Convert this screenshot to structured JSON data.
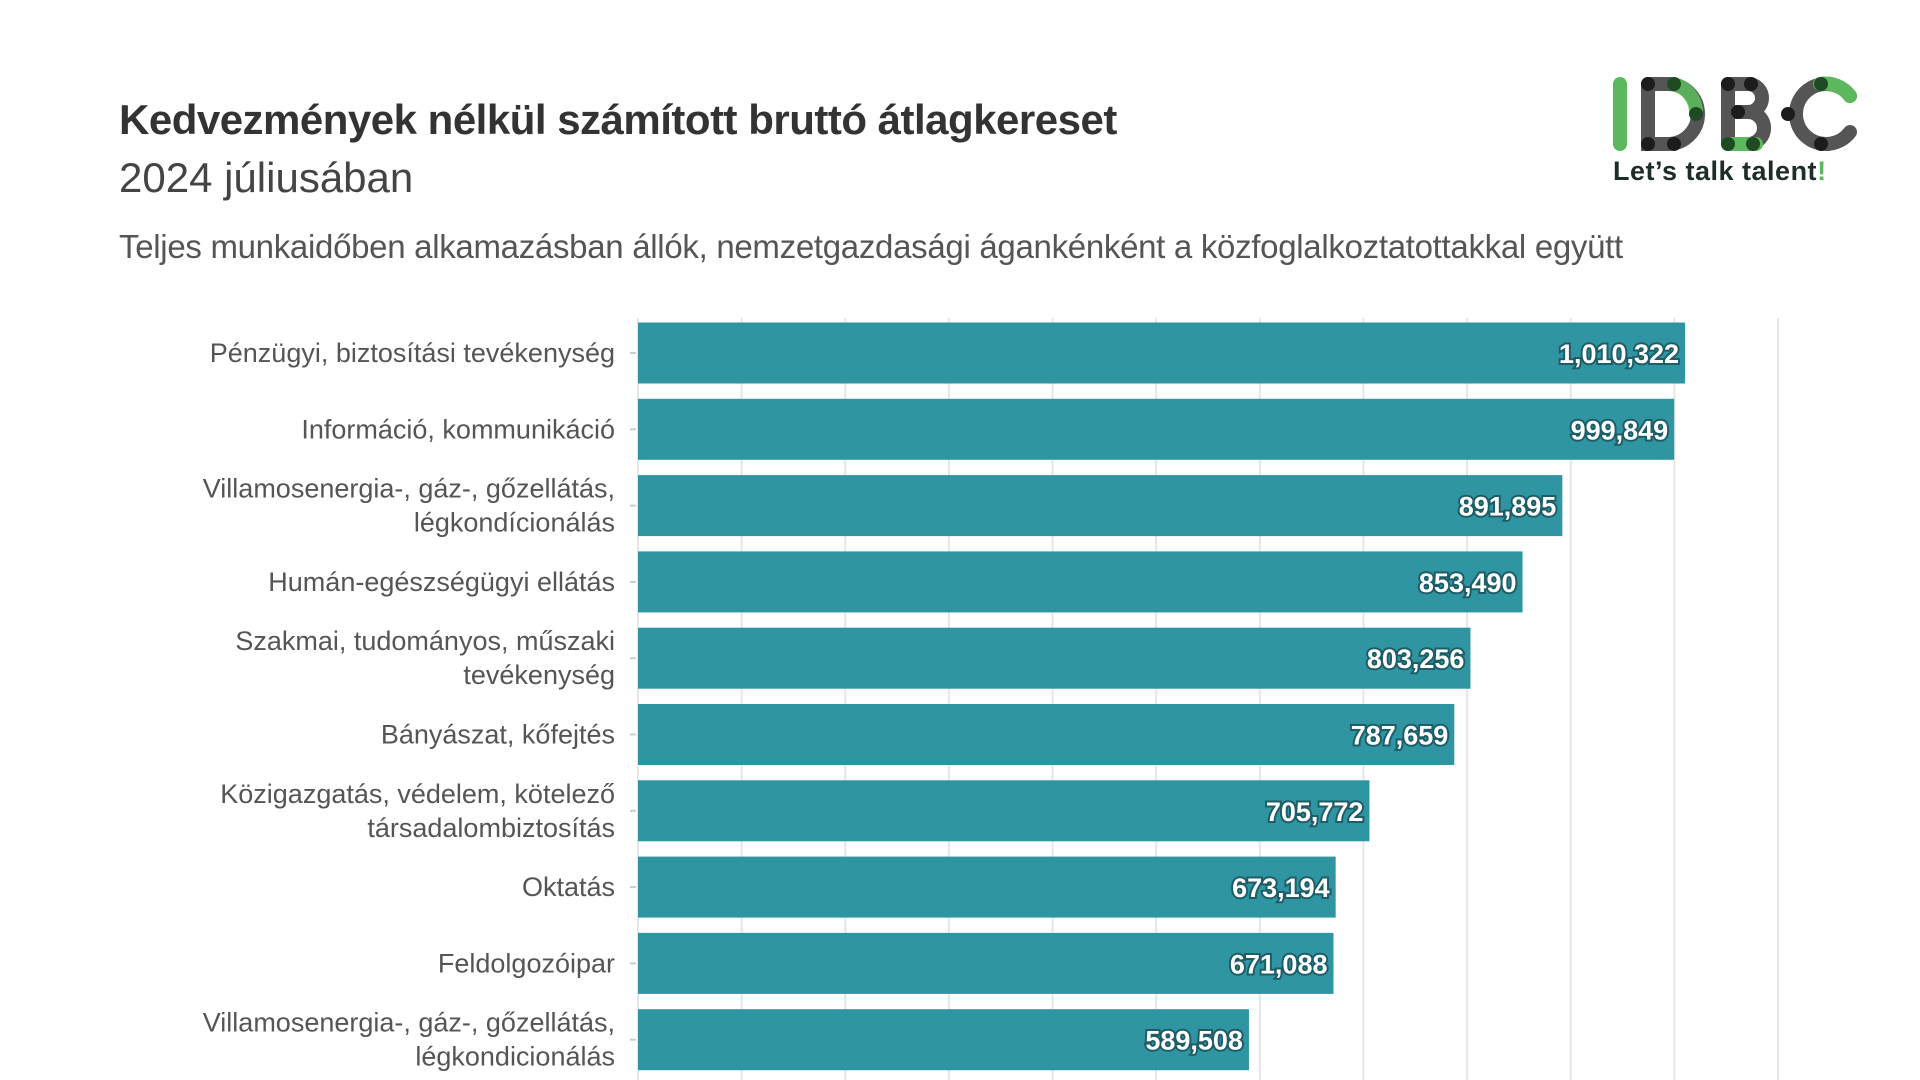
{
  "header": {
    "title": "Kedvezmények nélkül számított bruttó átlagkereset",
    "subtitle": "2024 júliusában",
    "description": "Teljes munkaidőben alkamazásban állók, nemzetgazdasági ágankénként a közfoglalkoztatottakkal együtt"
  },
  "logo": {
    "text": "IDBC",
    "tagline": "Let’s talk talent",
    "tagline_mark": "!"
  },
  "colors": {
    "bar": "#2f95a2",
    "grid": "#e6e6e6",
    "logo_green": "#5cb85c",
    "logo_dark": "#555555"
  },
  "chart_data": {
    "type": "bar",
    "orientation": "horizontal",
    "title": "Kedvezmények nélkül számított bruttó átlagkereset",
    "categories": [
      "Pénzügyi, biztosítási tevékenység",
      "Információ, kommunikáció",
      "Villamosenergia-, gáz-, gőzellátás,\nlégkondícionálás",
      "Humán-egészségügyi ellátás",
      "Szakmai, tudományos, műszaki\ntevékenység",
      "Bányászat, kőfejtés",
      "Közigazgatás, védelem, kötelező\ntársadalombiztosítás",
      "Oktatás",
      "Feldolgozóipar",
      "Villamosenergia-, gáz-, gőzellátás,\nlégkondicionálás"
    ],
    "values": [
      1010322,
      999849,
      891895,
      853490,
      803256,
      787659,
      705772,
      673194,
      671088,
      589508
    ],
    "value_labels": [
      "1,010,322",
      "999,849",
      "891,895",
      "853,490",
      "803,256",
      "787,659",
      "705,772",
      "673,194",
      "671,088",
      "589,508"
    ],
    "xlim": [
      0,
      1100000
    ],
    "grid_step": 100000,
    "grid": true
  }
}
